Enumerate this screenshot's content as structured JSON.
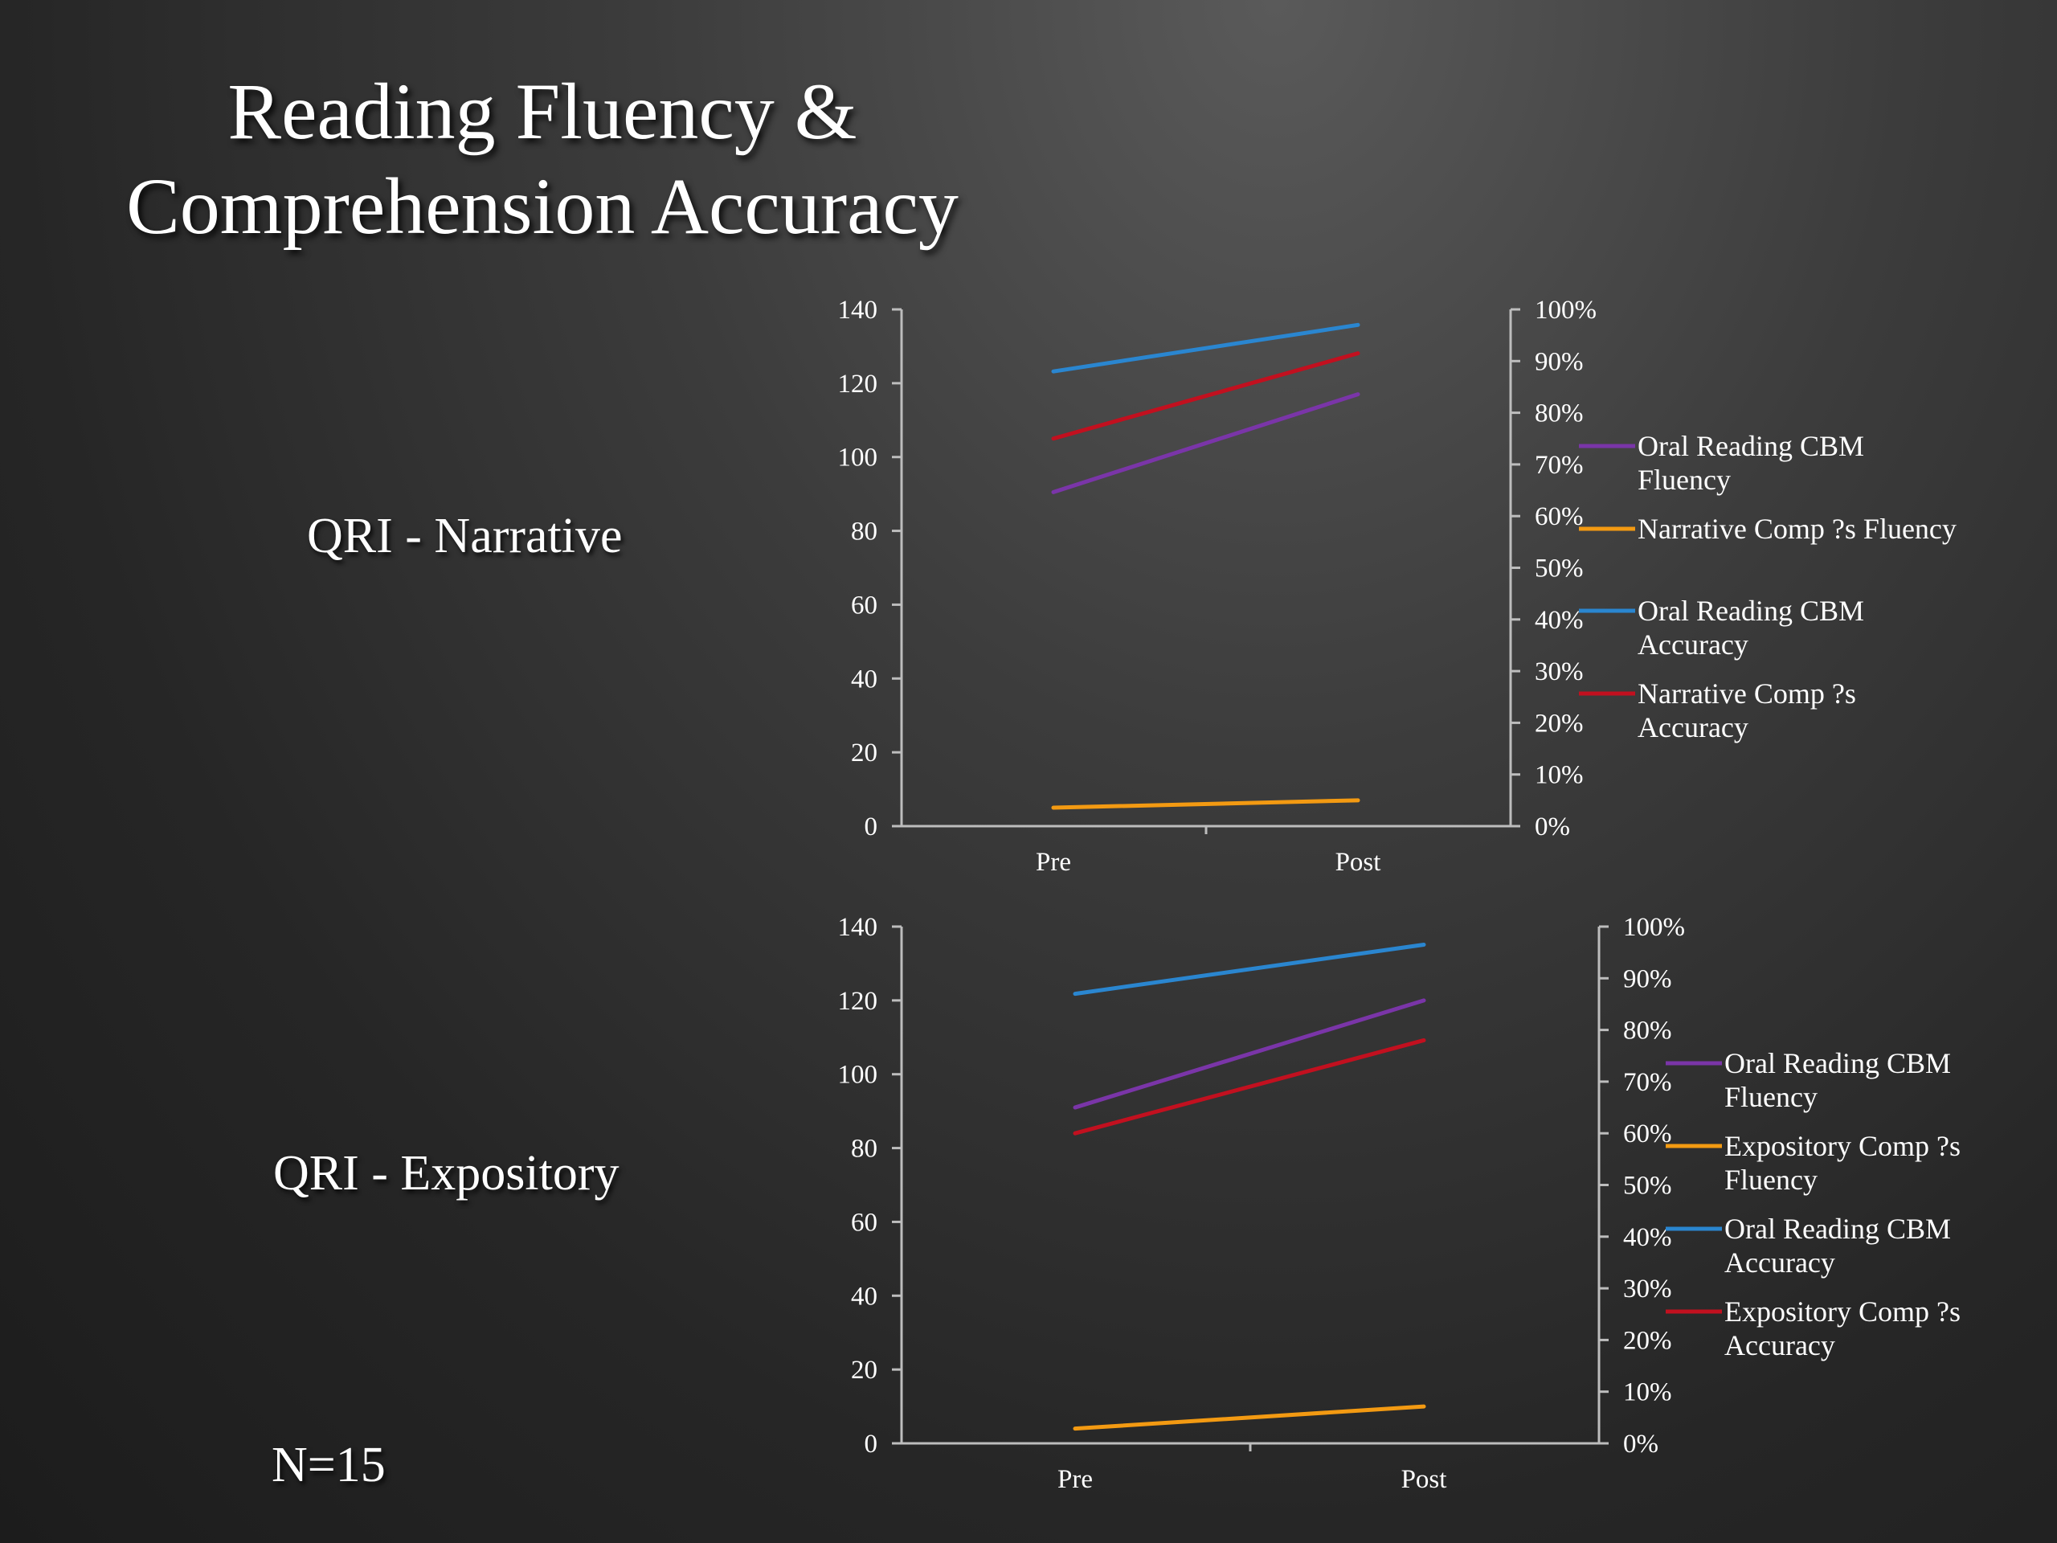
{
  "slide": {
    "title_line1": "Reading Fluency &",
    "title_line2": "Comprehension Accuracy",
    "label_narrative": "QRI - Narrative",
    "label_expository": "QRI - Expository",
    "n_label": "N=15"
  },
  "chart_data": [
    {
      "type": "line",
      "categories": [
        "Pre",
        "Post"
      ],
      "y_left": {
        "range": [
          0,
          140
        ],
        "ticks": [
          "0",
          "20",
          "40",
          "60",
          "80",
          "100",
          "120",
          "140"
        ]
      },
      "y_right": {
        "range": [
          0,
          1
        ],
        "ticks": [
          "0%",
          "10%",
          "20%",
          "30%",
          "40%",
          "50%",
          "60%",
          "70%",
          "80%",
          "90%",
          "100%"
        ]
      },
      "grid": false,
      "legend": "right",
      "series": [
        {
          "name": "Oral Reading CBM Fluency",
          "legend_lines": [
            "Oral Reading CBM",
            "Fluency"
          ],
          "axis": "left",
          "color": "#7a35a8",
          "values": [
            90.5,
            117
          ]
        },
        {
          "name": "Narrative Comp ?s Fluency",
          "legend_lines": [
            "Narrative Comp ?s Fluency"
          ],
          "axis": "left",
          "color": "#f39a12",
          "values": [
            5,
            7
          ]
        },
        {
          "name": "Oral Reading CBM Accuracy",
          "legend_lines": [
            "Oral Reading CBM",
            "Accuracy"
          ],
          "axis": "right",
          "color": "#2a86d0",
          "values": [
            0.88,
            0.97
          ]
        },
        {
          "name": "Narrative Comp ?s Accuracy",
          "legend_lines": [
            "Narrative Comp ?s",
            "Accuracy"
          ],
          "axis": "right",
          "color": "#c2101f",
          "values": [
            0.75,
            0.915
          ]
        }
      ]
    },
    {
      "type": "line",
      "categories": [
        "Pre",
        "Post"
      ],
      "y_left": {
        "range": [
          0,
          140
        ],
        "ticks": [
          "0",
          "20",
          "40",
          "60",
          "80",
          "100",
          "120",
          "140"
        ]
      },
      "y_right": {
        "range": [
          0,
          1
        ],
        "ticks": [
          "0%",
          "10%",
          "20%",
          "30%",
          "40%",
          "50%",
          "60%",
          "70%",
          "80%",
          "90%",
          "100%"
        ]
      },
      "grid": false,
      "legend": "right",
      "series": [
        {
          "name": "Oral Reading CBM Fluency",
          "legend_lines": [
            "Oral Reading CBM",
            "Fluency"
          ],
          "axis": "left",
          "color": "#7a35a8",
          "values": [
            91,
            120
          ]
        },
        {
          "name": "Expository Comp ?s Fluency",
          "legend_lines": [
            "Expository Comp ?s",
            "Fluency"
          ],
          "axis": "left",
          "color": "#f39a12",
          "values": [
            4,
            10
          ]
        },
        {
          "name": "Oral Reading CBM Accuracy",
          "legend_lines": [
            "Oral Reading CBM",
            "Accuracy"
          ],
          "axis": "right",
          "color": "#2a86d0",
          "values": [
            0.87,
            0.965
          ]
        },
        {
          "name": "Expository Comp ?s Accuracy",
          "legend_lines": [
            "Expository Comp ?s",
            "Accuracy"
          ],
          "axis": "right",
          "color": "#c2101f",
          "values": [
            0.6,
            0.78
          ]
        }
      ]
    }
  ]
}
